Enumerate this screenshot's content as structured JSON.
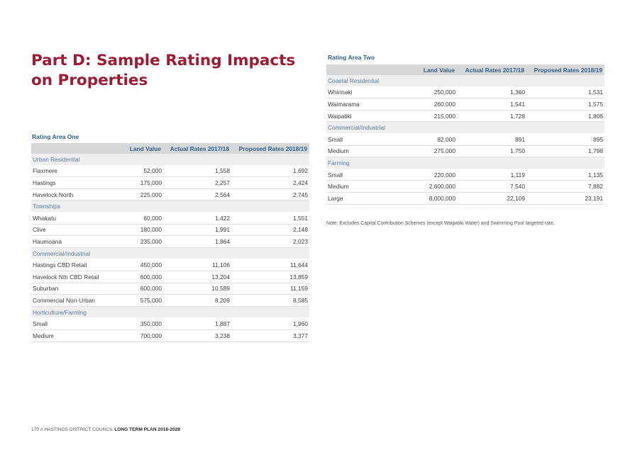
{
  "page": {
    "title_line1": "Part D: Sample Rating Impacts",
    "title_line2": "on Properties",
    "note": "Note: Excludes Capital Contribution Schemes (except Waipatiki Water) and Swimming Pool targeted rate.",
    "footer_prefix": "170 // HASTINGS DISTRICT COUNCIL ",
    "footer_bold": "LONG TERM PLAN 2018-2028"
  },
  "area_one": {
    "title": "Rating Area One",
    "headers": [
      "",
      "Land Value",
      "Actual Rates 2017/18",
      "Proposed Rates 2018/19"
    ],
    "groups": [
      {
        "name": "Urban Residential",
        "rows": [
          {
            "name": "Flaxmere",
            "land": "52,000",
            "actual": "1,558",
            "proposed": "1,692"
          },
          {
            "name": "Hastings",
            "land": "175,000",
            "actual": "2,257",
            "proposed": "2,424"
          },
          {
            "name": "Havelock North",
            "land": "225,000",
            "actual": "2,564",
            "proposed": "2,745"
          }
        ]
      },
      {
        "name": "Townships",
        "rows": [
          {
            "name": "Whakatu",
            "land": "60,000",
            "actual": "1,422",
            "proposed": "1,551"
          },
          {
            "name": "Clive",
            "land": "180,000",
            "actual": "1,991",
            "proposed": "2,148"
          },
          {
            "name": "Haumoana",
            "land": "235,000",
            "actual": "1,864",
            "proposed": "2,023"
          }
        ]
      },
      {
        "name": "Commercial/Industrial",
        "rows": [
          {
            "name": "Hastings CBD Retail",
            "land": "450,000",
            "actual": "11,106",
            "proposed": "11,644"
          },
          {
            "name": "Havelock Nth CBD Retail",
            "land": "600,000",
            "actual": "13,204",
            "proposed": "13,859"
          },
          {
            "name": "Suburban",
            "land": "600,000",
            "actual": "10,589",
            "proposed": "11,159"
          },
          {
            "name": "Commercial Non-Urban",
            "land": "575,000",
            "actual": "8,209",
            "proposed": "8,585"
          }
        ]
      },
      {
        "name": "Horticulture/Farming",
        "rows": [
          {
            "name": "Small",
            "land": "350,000",
            "actual": "1,887",
            "proposed": "1,960"
          },
          {
            "name": "Medium",
            "land": "700,000",
            "actual": "3,238",
            "proposed": "3,377"
          }
        ]
      }
    ]
  },
  "area_two": {
    "title": "Rating Area Two",
    "headers": [
      "",
      "Land Value",
      "Actual Rates 2017/18",
      "Proposed Rates 2018/19"
    ],
    "groups": [
      {
        "name": "Coastal Residential",
        "rows": [
          {
            "name": "Whirinaki",
            "land": "250,000",
            "actual": "1,360",
            "proposed": "1,531"
          },
          {
            "name": "Waimarama",
            "land": "260,000",
            "actual": "1,541",
            "proposed": "1,575"
          },
          {
            "name": "Waipatiki",
            "land": "215,000",
            "actual": "1,728",
            "proposed": "1,806"
          }
        ]
      },
      {
        "name": "Commercial/Industrial",
        "rows": [
          {
            "name": "Small",
            "land": "82,000",
            "actual": "891",
            "proposed": "895"
          },
          {
            "name": "Medium",
            "land": "275,000",
            "actual": "1,750",
            "proposed": "1,798"
          }
        ]
      },
      {
        "name": "Farming",
        "rows": [
          {
            "name": "Small",
            "land": "220,000",
            "actual": "1,119",
            "proposed": "1,135"
          },
          {
            "name": "Medium",
            "land": "2,600,000",
            "actual": "7,540",
            "proposed": "7,882"
          },
          {
            "name": "Large",
            "land": "8,000,000",
            "actual": "22,109",
            "proposed": "23,191"
          }
        ]
      }
    ]
  }
}
